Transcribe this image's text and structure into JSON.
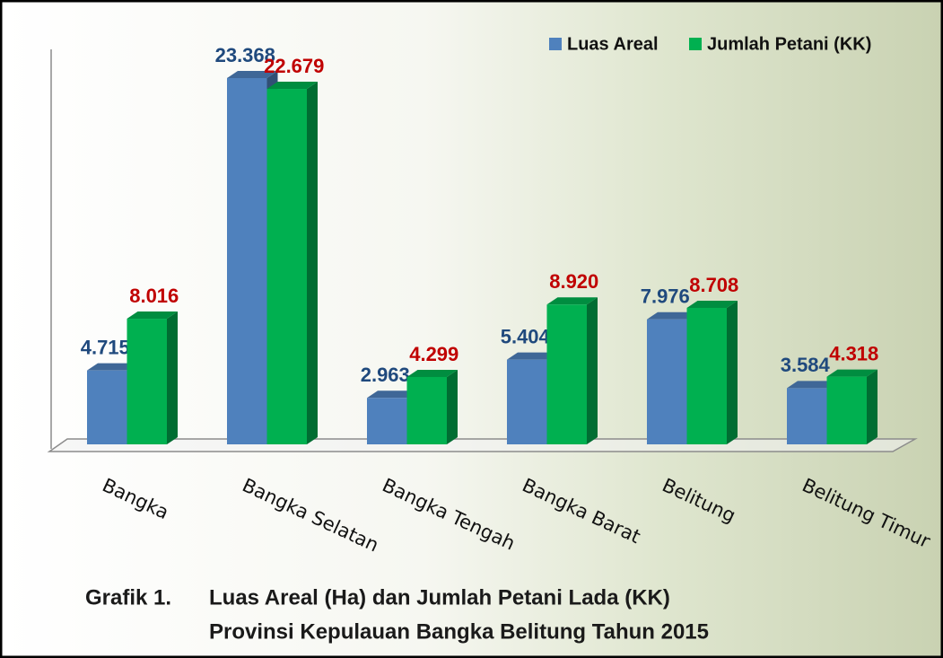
{
  "chart_data": {
    "type": "bar3d",
    "caption_label": "Grafik 1.",
    "title_lines": [
      "Luas Areal (Ha) dan Jumlah Petani Lada (KK)",
      "Provinsi Kepulauan Bangka Belitung Tahun 2015"
    ],
    "categories": [
      "Bangka",
      "Bangka Selatan",
      "Bangka Tengah",
      "Bangka Barat",
      "Belitung",
      "Belitung Timur"
    ],
    "series": [
      {
        "name": "Luas Areal",
        "color": "#4f81bd",
        "label_color": "#1f497d",
        "values": [
          4715,
          23368,
          2963,
          5404,
          7976,
          3584
        ],
        "value_labels": [
          "4.715",
          "23.368",
          "2.963",
          "5.404",
          "7.976",
          "3.584"
        ]
      },
      {
        "name": "Jumlah Petani (KK)",
        "color": "#00b050",
        "label_color": "#c00000",
        "values": [
          8016,
          22679,
          4299,
          8920,
          8708,
          4318
        ],
        "value_labels": [
          "8.016",
          "22.679",
          "4.299",
          "8.920",
          "8.708",
          "4.318"
        ]
      }
    ],
    "legend": "top-right"
  }
}
